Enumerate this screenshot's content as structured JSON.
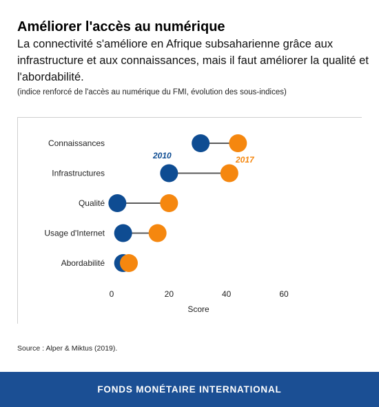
{
  "header": {
    "title": "Améliorer l'accès au numérique",
    "subtitle": "La connectivité s'améliore en Afrique subsaharienne grâce aux infrastructure et aux connaissances, mais il faut améliorer la qualité et l'abordabilité.",
    "note": "(indice renforcé de l'accès au numérique du FMI, évolution des sous-indices)"
  },
  "source": "Source : Alper & Miktus (2019).",
  "footer": {
    "text": "FONDS MONÉTAIRE INTERNATIONAL"
  },
  "colors": {
    "series_2010": "#0e4c92",
    "series_2017": "#f5870f",
    "connector": "#5a5a5a",
    "footer_bg": "#1b4f94"
  },
  "chart_data": {
    "type": "scatter",
    "subtype": "dumbbell",
    "categories": [
      "Connaissances",
      "Infrastructures",
      "Qualité",
      "Usage d'Internet",
      "Abordabilité"
    ],
    "series": [
      {
        "name": "2010",
        "values": [
          31,
          20,
          2,
          4,
          4
        ]
      },
      {
        "name": "2017",
        "values": [
          44,
          41,
          20,
          16,
          6
        ]
      }
    ],
    "xlabel": "Score",
    "xlim": [
      0,
      60
    ],
    "xticks": [
      0,
      20,
      40,
      60
    ],
    "grid": false
  }
}
